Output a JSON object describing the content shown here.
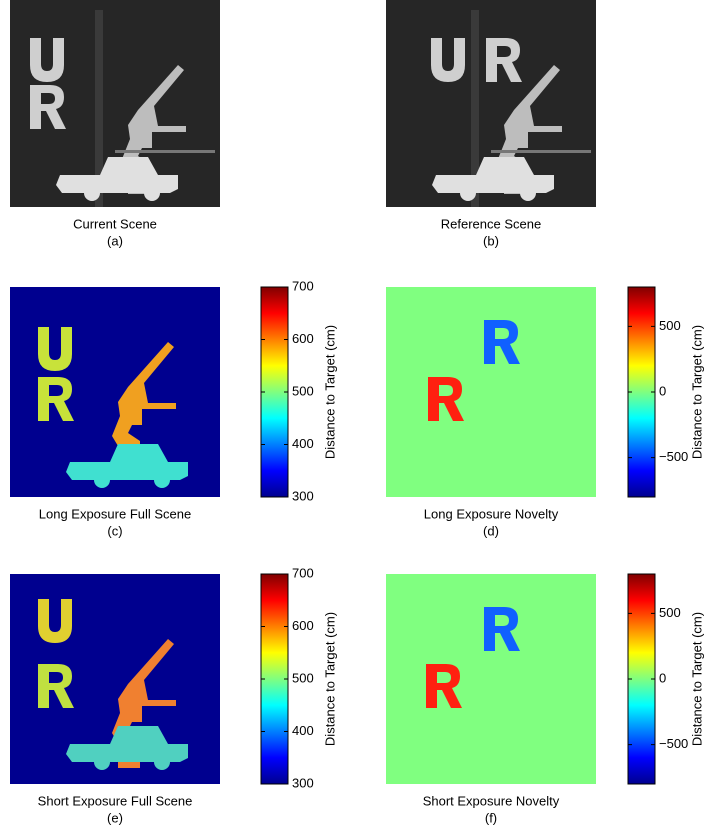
{
  "panels": [
    {
      "caption": "Current Scene",
      "label": "(a)"
    },
    {
      "caption": "Reference Scene",
      "label": "(b)"
    },
    {
      "caption": "Long Exposure Full Scene",
      "label": "(c)",
      "colorbar": {
        "label": "Distance to Target (cm)",
        "lim": [
          300,
          700
        ],
        "ticks": [
          300,
          400,
          500,
          600,
          700
        ]
      }
    },
    {
      "caption": "Long Exposure Novelty",
      "label": "(d)",
      "colorbar": {
        "label": "Distance to Target (cm)",
        "lim": [
          -800,
          800
        ],
        "ticks": [
          {
            "value": -500,
            "label": "−500"
          },
          0,
          500
        ]
      }
    },
    {
      "caption": "Short Exposure Full Scene",
      "label": "(e)",
      "colorbar": {
        "label": "Distance to Target (cm)",
        "lim": [
          300,
          700
        ],
        "ticks": [
          300,
          400,
          500,
          600,
          700
        ]
      }
    },
    {
      "caption": "Short Exposure Novelty",
      "label": "(f)",
      "colorbar": {
        "label": "Distance to Target (cm)",
        "lim": [
          -800,
          800
        ],
        "ticks": [
          {
            "value": -500,
            "label": "−500"
          },
          0,
          500
        ]
      }
    }
  ]
}
